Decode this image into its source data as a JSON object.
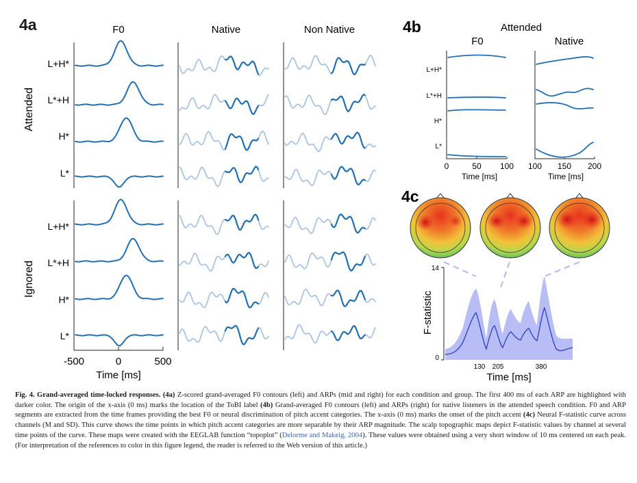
{
  "panel_4a": {
    "label": "4a",
    "column_titles": [
      "F0",
      "Native",
      "Non Native"
    ],
    "group_labels": [
      "Attended",
      "Ignored"
    ],
    "row_labels": [
      "L+H*",
      "L*+H",
      "H*",
      "L*"
    ],
    "x_ticks": [
      "-500",
      "0",
      "500"
    ],
    "x_label": "Time [ms]"
  },
  "panel_4b": {
    "label": "4b",
    "title": "Attended",
    "column_titles": [
      "F0",
      "Native"
    ],
    "row_labels": [
      "L+H*",
      "L*+H",
      "H*",
      "L*"
    ],
    "x_ticks_left": [
      "0",
      "50",
      "100"
    ],
    "x_ticks_right": [
      "100",
      "150",
      "200"
    ],
    "x_label": "Time [ms]"
  },
  "panel_4c": {
    "label": "4c",
    "y_label": "F-statistic",
    "y_ticks": [
      "0",
      "14"
    ],
    "x_ticks": [
      "130",
      "205",
      "380"
    ],
    "x_label": "Time [ms]",
    "topomap_count": 3
  },
  "colors": {
    "curve_dark": "#1f6fb5",
    "curve_light": "#a9c4e6",
    "fstat_line": "#2a3fc4",
    "fstat_band": "#b9bdf5",
    "reference_link": "#3a66c9"
  },
  "caption": {
    "fig_label": "Fig. 4.",
    "fig_title": "Grand-averaged time-locked responses.",
    "ref_4a": "(4a)",
    "text_1": " Z-scored grand-averaged F0 contours (left) and ARPs (mid and right) for each condition and group. The first 400 ms of each ARP are highlighted with darker color. The origin of the x-axis (0 ms) marks the location of the ToBI label ",
    "ref_4b": "(4b)",
    "text_2": " Grand-averaged F0 contours (left) and ARPs (right) for native listeners in the attended speech condition. F0 and ARP segments are extracted from the time frames providing the best F0 or neural discrimination of pitch accent categories. The x-axis (0 ms) marks the onset of the pitch accent ",
    "ref_4c": "(4c)",
    "text_3": " Neural F-statistic curve across channels (M and SD). This curve shows the time points in which pitch accent categories are more separable by their ARP magnitude. The scalp topographic maps depict F-statistic values by channel at several time points of the curve. These maps were created with the EEGLAB function “topoplot” (",
    "citation": "Delorme and Makeig, 2004",
    "text_4": "). These values were obtained using a very short window of 10 ms centered on each peak. (For interpretation of the references to color in this figure legend, the reader is referred to the Web version of this article.)"
  }
}
